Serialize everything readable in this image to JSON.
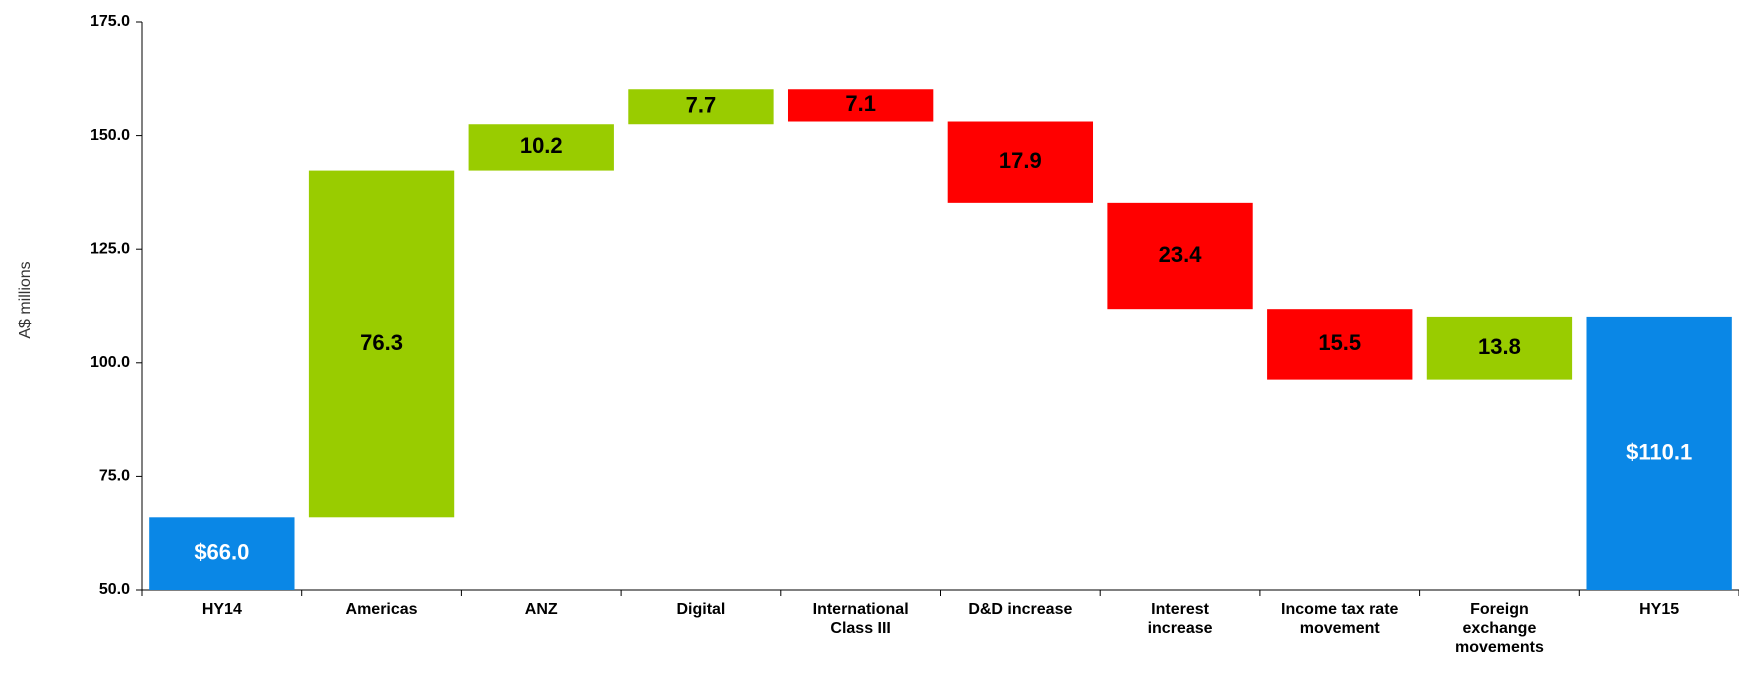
{
  "chart_data": {
    "type": "waterfall",
    "y_axis_label": "A$ millions",
    "categories": [
      "HY14",
      "Americas",
      "ANZ",
      "Digital",
      "International Class III",
      "D&D increase",
      "Interest increase",
      "Income tax rate movement",
      "Foreign exchange movements",
      "HY15"
    ],
    "measures": [
      "total",
      "increase",
      "increase",
      "increase",
      "decrease",
      "decrease",
      "decrease",
      "decrease",
      "increase",
      "total"
    ],
    "values": [
      66.0,
      76.3,
      10.2,
      7.7,
      7.1,
      17.9,
      23.4,
      15.5,
      13.8,
      110.1
    ],
    "value_labels": [
      "$66.0",
      "76.3",
      "10.2",
      "7.7",
      "7.1",
      "17.9",
      "23.4",
      "15.5",
      "13.8",
      "$110.1"
    ],
    "colors": {
      "total": "#0a87e6",
      "increase": "#99cc00",
      "decrease": "#ff0000"
    },
    "ylim": [
      50,
      175
    ],
    "yticks": [
      {
        "value": 50,
        "label": "50.0"
      },
      {
        "value": 75,
        "label": "75.0"
      },
      {
        "value": 100,
        "label": "100.0"
      },
      {
        "value": 125,
        "label": "125.0"
      },
      {
        "value": 150,
        "label": "150.0"
      },
      {
        "value": 175,
        "label": "175.0"
      }
    ]
  }
}
